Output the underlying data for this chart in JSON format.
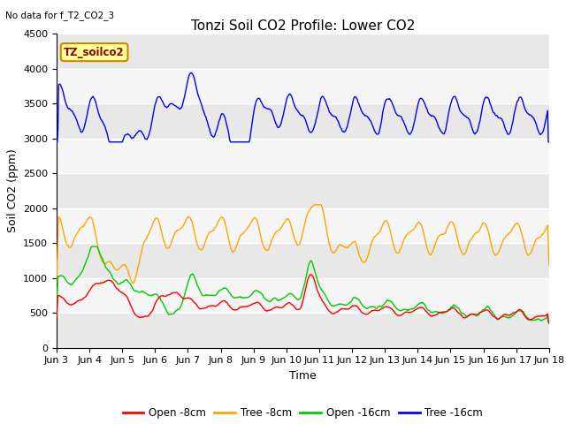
{
  "title": "Tonzi Soil CO2 Profile: Lower CO2",
  "subtitle": "No data for f_T2_CO2_3",
  "xlabel": "Time",
  "ylabel": "Soil CO2 (ppm)",
  "ylim": [
    0,
    4500
  ],
  "yticks": [
    0,
    500,
    1000,
    1500,
    2000,
    2500,
    3000,
    3500,
    4000,
    4500
  ],
  "xtick_labels": [
    "Jun 3",
    "Jun 4",
    "Jun 5",
    "Jun 6",
    "Jun 7",
    "Jun 8",
    "Jun 9",
    "Jun 10",
    "Jun 11",
    "Jun 12",
    "Jun 13",
    "Jun 14",
    "Jun 15",
    "Jun 16",
    "Jun 17",
    "Jun 18"
  ],
  "legend_labels": [
    "Open -8cm",
    "Tree -8cm",
    "Open -16cm",
    "Tree -16cm"
  ],
  "legend_colors": [
    "#ff0000",
    "#ffa500",
    "#00cc00",
    "#0000ff"
  ],
  "line_colors": {
    "open_8cm": "#ff0000",
    "tree_8cm": "#ffa500",
    "open_16cm": "#00cc00",
    "tree_16cm": "#0000ff"
  },
  "annotation_text": "TZ_soilco2",
  "annotation_color": "#8b0000",
  "annotation_bg": "#ffff99",
  "bg_color": "#ffffff",
  "plot_bg_dark": "#e8e8e8",
  "plot_bg_light": "#f5f5f5",
  "grid_color": "#ffffff",
  "n_points": 720,
  "title_fontsize": 11,
  "axis_fontsize": 9,
  "tick_fontsize": 8
}
